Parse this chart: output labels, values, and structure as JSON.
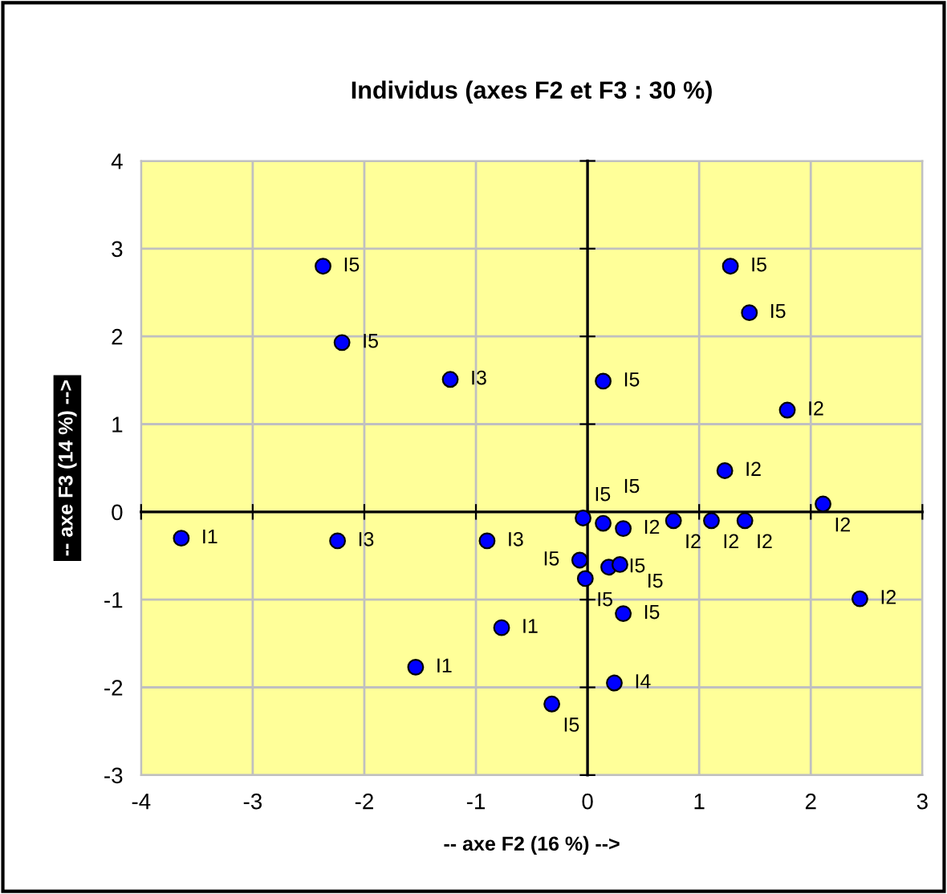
{
  "chart_data": {
    "type": "scatter",
    "title": "Individus (axes F2 et F3 : 30 %)",
    "xlabel": "-- axe F2 (16 %) -->",
    "ylabel": "-- axe F3 (14 %) -->",
    "x": [
      -2.37,
      -2.2,
      -1.23,
      0.14,
      1.28,
      1.45,
      1.79,
      1.23,
      2.11,
      -3.64,
      -2.24,
      -0.9,
      -0.77,
      -1.54,
      -0.32,
      -0.04,
      0.14,
      0.32,
      0.77,
      1.11,
      1.41,
      -0.07,
      -0.02,
      0.19,
      0.29,
      0.32,
      0.24,
      2.44
    ],
    "values": [
      2.8,
      1.93,
      1.51,
      1.49,
      2.8,
      2.27,
      1.16,
      0.47,
      0.09,
      -0.3,
      -0.33,
      -0.33,
      -1.32,
      -1.77,
      -2.19,
      -0.07,
      -0.13,
      -0.19,
      -0.1,
      -0.1,
      -0.1,
      -0.55,
      -0.76,
      -0.63,
      -0.6,
      -1.16,
      -1.95,
      -0.99
    ],
    "color": "#0000ff",
    "marker": "circle",
    "annotations": [
      {
        "text": "I5",
        "x": -2.37,
        "y": 2.8
      },
      {
        "text": "I5",
        "x": -2.2,
        "y": 1.93
      },
      {
        "text": "I3",
        "x": -1.23,
        "y": 1.51
      },
      {
        "text": "I5",
        "x": 0.14,
        "y": 1.49
      },
      {
        "text": "I5",
        "x": 1.28,
        "y": 2.8
      },
      {
        "text": "I5",
        "x": 1.45,
        "y": 2.27
      },
      {
        "text": "I2",
        "x": 1.79,
        "y": 1.16
      },
      {
        "text": "I2",
        "x": 1.23,
        "y": 0.47
      },
      {
        "text": "I2",
        "x": 2.11,
        "y": 0.09
      },
      {
        "text": "I1",
        "x": -3.64,
        "y": -0.3
      },
      {
        "text": "I3",
        "x": -2.24,
        "y": -0.33
      },
      {
        "text": "I3",
        "x": -0.9,
        "y": -0.33
      },
      {
        "text": "I1",
        "x": -0.77,
        "y": -1.32
      },
      {
        "text": "I1",
        "x": -1.54,
        "y": -1.77
      },
      {
        "text": "I5",
        "x": -0.32,
        "y": -2.19
      },
      {
        "text": "I5",
        "x": -0.04,
        "y": -0.07
      },
      {
        "text": "I5",
        "x": 0.14,
        "y": -0.13
      },
      {
        "text": "I2",
        "x": 0.32,
        "y": -0.19
      },
      {
        "text": "I2",
        "x": 0.77,
        "y": -0.1
      },
      {
        "text": "I2",
        "x": 1.11,
        "y": -0.1
      },
      {
        "text": "I2",
        "x": 1.41,
        "y": -0.1
      },
      {
        "text": "I5",
        "x": -0.07,
        "y": -0.55
      },
      {
        "text": "I5",
        "x": -0.02,
        "y": -0.76
      },
      {
        "text": "I5",
        "x": 0.19,
        "y": -0.63
      },
      {
        "text": "I5",
        "x": 0.29,
        "y": -0.6
      },
      {
        "text": "I5",
        "x": 0.32,
        "y": -1.16
      },
      {
        "text": "I4",
        "x": 0.24,
        "y": -1.95
      },
      {
        "text": "I2",
        "x": 2.44,
        "y": -0.99
      }
    ],
    "xlim": [
      -4,
      3
    ],
    "ylim": [
      -3,
      4
    ],
    "xticks": [
      -4,
      -3,
      -2,
      -1,
      0,
      1,
      2,
      3
    ],
    "yticks": [
      -3,
      -2,
      -1,
      0,
      1,
      2,
      3,
      4
    ],
    "grid": true,
    "legend": false
  }
}
